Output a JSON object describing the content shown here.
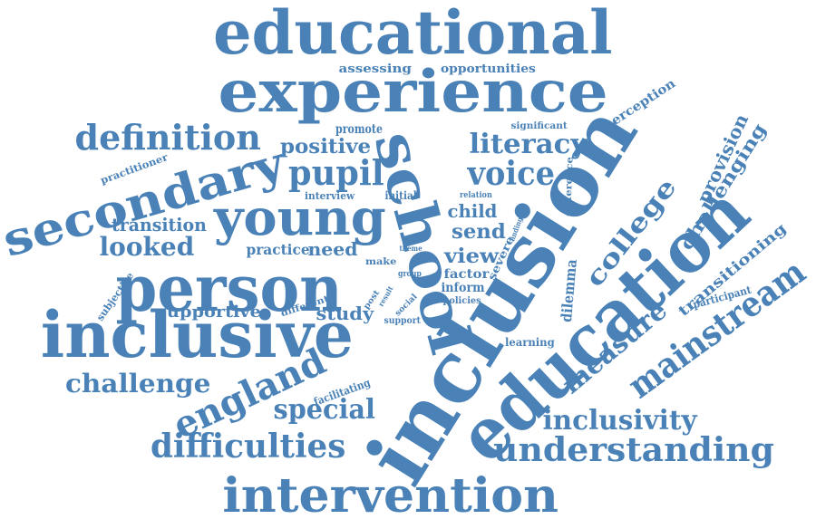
{
  "color": "#4a82b7",
  "words": [
    {
      "text": "educational"
    },
    {
      "text": "experience"
    },
    {
      "text": "assessing"
    },
    {
      "text": "opportunities"
    },
    {
      "text": "definition"
    },
    {
      "text": "promote"
    },
    {
      "text": "positive"
    },
    {
      "text": "literacy"
    },
    {
      "text": "significant"
    },
    {
      "text": "perception"
    },
    {
      "text": "secondary"
    },
    {
      "text": "pupil"
    },
    {
      "text": "voice"
    },
    {
      "text": "practitioner"
    },
    {
      "text": "young"
    },
    {
      "text": "school"
    },
    {
      "text": "inclusion"
    },
    {
      "text": "interview"
    },
    {
      "text": "initial"
    },
    {
      "text": "relation"
    },
    {
      "text": "difference"
    },
    {
      "text": "provision"
    },
    {
      "text": "challenging"
    },
    {
      "text": "transition"
    },
    {
      "text": "child"
    },
    {
      "text": "send"
    },
    {
      "text": "college"
    },
    {
      "text": "looked"
    },
    {
      "text": "practice"
    },
    {
      "text": "need"
    },
    {
      "text": "view"
    },
    {
      "text": "finding"
    },
    {
      "text": "severe"
    },
    {
      "text": "person"
    },
    {
      "text": "make"
    },
    {
      "text": "theme"
    },
    {
      "text": "factor"
    },
    {
      "text": "transitioning"
    },
    {
      "text": "group"
    },
    {
      "text": "inform"
    },
    {
      "text": "policies"
    },
    {
      "text": "subjective"
    },
    {
      "text": "supportive"
    },
    {
      "text": "different"
    },
    {
      "text": "post"
    },
    {
      "text": "result"
    },
    {
      "text": "social"
    },
    {
      "text": "support"
    },
    {
      "text": "dilemma"
    },
    {
      "text": "participant"
    },
    {
      "text": "study"
    },
    {
      "text": "education"
    },
    {
      "text": "mainstream"
    },
    {
      "text": "inclusive"
    },
    {
      "text": "learning"
    },
    {
      "text": "measure"
    },
    {
      "text": "challenge"
    },
    {
      "text": "england"
    },
    {
      "text": "facilitating"
    },
    {
      "text": "special"
    },
    {
      "text": "inclusivity"
    },
    {
      "text": "difficulties"
    },
    {
      "text": "understanding"
    },
    {
      "text": "intervention"
    }
  ]
}
